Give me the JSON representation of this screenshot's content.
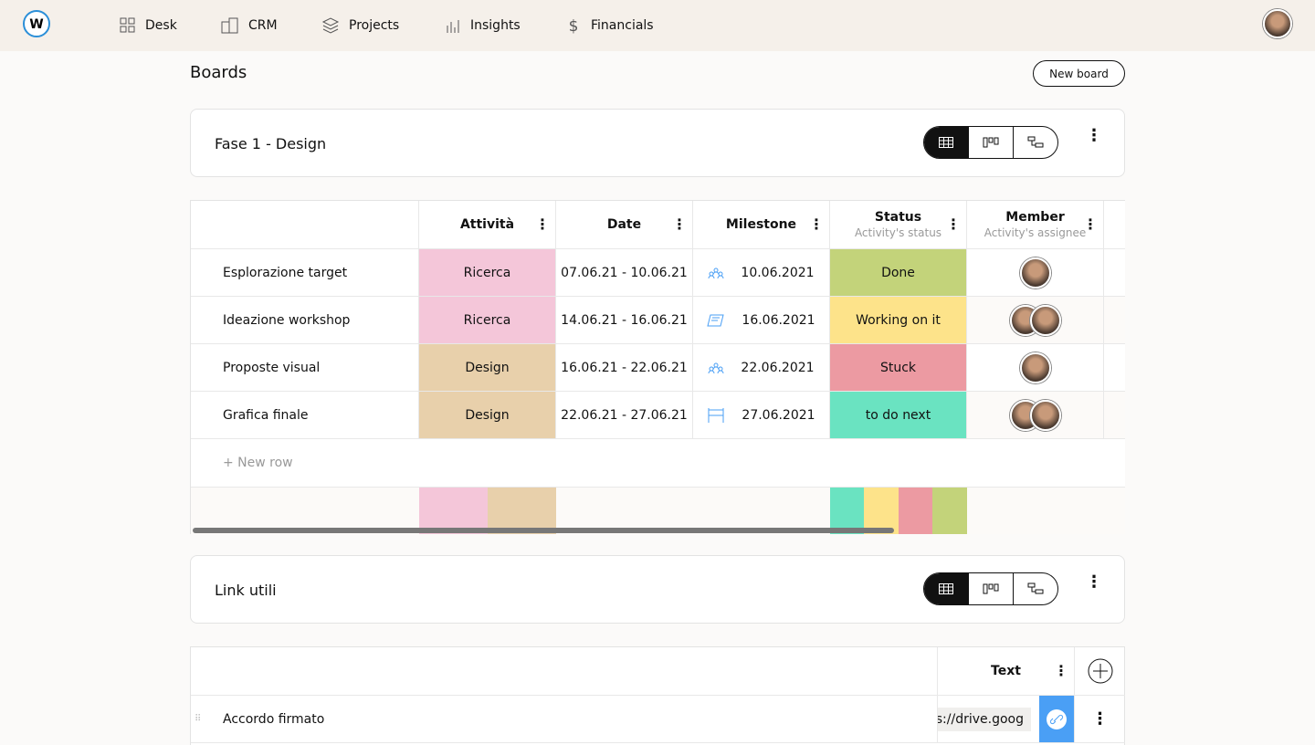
{
  "nav": {
    "items": [
      "Desk",
      "CRM",
      "Projects",
      "Insights",
      "Financials"
    ]
  },
  "page": {
    "title": "Boards",
    "new_board": "New board"
  },
  "boards": [
    {
      "title": "Fase 1 - Design",
      "columns": [
        {
          "title": "Attività"
        },
        {
          "title": "Date"
        },
        {
          "title": "Milestone"
        },
        {
          "title": "Status",
          "subtitle": "Activity's status"
        },
        {
          "title": "Member",
          "subtitle": "Activity's assignee"
        }
      ],
      "rows": [
        {
          "name": "Esplorazione target",
          "activity": "Ricerca",
          "date": "07.06.21 - 10.06.21",
          "milestone": "10.06.2021",
          "status": "Done"
        },
        {
          "name": "Ideazione workshop",
          "activity": "Ricerca",
          "date": "14.06.21 - 16.06.21",
          "milestone": "16.06.2021",
          "status": "Working on it"
        },
        {
          "name": "Proposte visual",
          "activity": "Design",
          "date": "16.06.21 - 22.06.21",
          "milestone": "22.06.2021",
          "status": "Stuck"
        },
        {
          "name": "Grafica finale",
          "activity": "Design",
          "date": "22.06.21 - 27.06.21",
          "milestone": "27.06.2021",
          "status": "to do next"
        }
      ],
      "new_row": "+ New row"
    },
    {
      "title": "Link utili",
      "columns": [
        {
          "title": "Text"
        }
      ],
      "rows": [
        {
          "name": "Accordo firmato",
          "text": "ps://drive.goog"
        }
      ]
    }
  ]
}
